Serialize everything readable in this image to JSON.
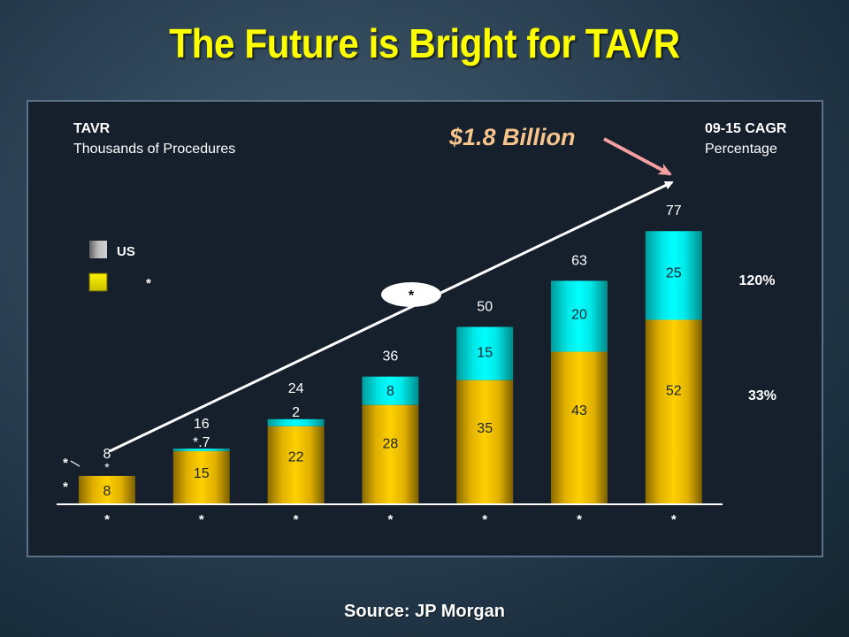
{
  "slide": {
    "title": "The Future is Bright for TAVR",
    "source": "Source:  JP Morgan"
  },
  "chart_data": {
    "type": "bar",
    "stacked": true,
    "title": "The Future is Bright for TAVR",
    "y_heading": "TAVR",
    "y_subheading": "Thousands of Procedures",
    "cagr_heading": "09-15 CAGR",
    "cagr_subheading": "Percentage",
    "categories": [
      "*",
      "*",
      "*",
      "*",
      "*",
      "*",
      "*"
    ],
    "series": [
      {
        "name": "US",
        "legend_label": "US",
        "color": "#00e5e5",
        "values": [
          0,
          0.7,
          2,
          8,
          15,
          20,
          25
        ],
        "labels": [
          "*",
          "*.7",
          "2",
          "8",
          "15",
          "20",
          "25"
        ],
        "cagr": "120%"
      },
      {
        "name": "*",
        "legend_label": "*",
        "color": "#f2c400",
        "values": [
          8,
          15,
          22,
          28,
          35,
          43,
          52
        ],
        "labels": [
          "8",
          "15",
          "22",
          "28",
          "35",
          "43",
          "52"
        ],
        "cagr": "33%"
      }
    ],
    "totals": [
      "8",
      "16",
      "24",
      "36",
      "50",
      "63",
      "77"
    ],
    "ylim": [
      0,
      80
    ],
    "grid": false,
    "legend_position": "left",
    "annotations": {
      "trend_label": "*",
      "callout": "$1.8 Billion",
      "first_bar_side_labels": [
        "*",
        "*"
      ]
    },
    "colors": {
      "title": "#ffff00",
      "callout": "#f7c48c",
      "callout_arrow": "#f4a0a0",
      "us_legend": "#a0a0a0",
      "other_legend": "#e0e000"
    }
  }
}
